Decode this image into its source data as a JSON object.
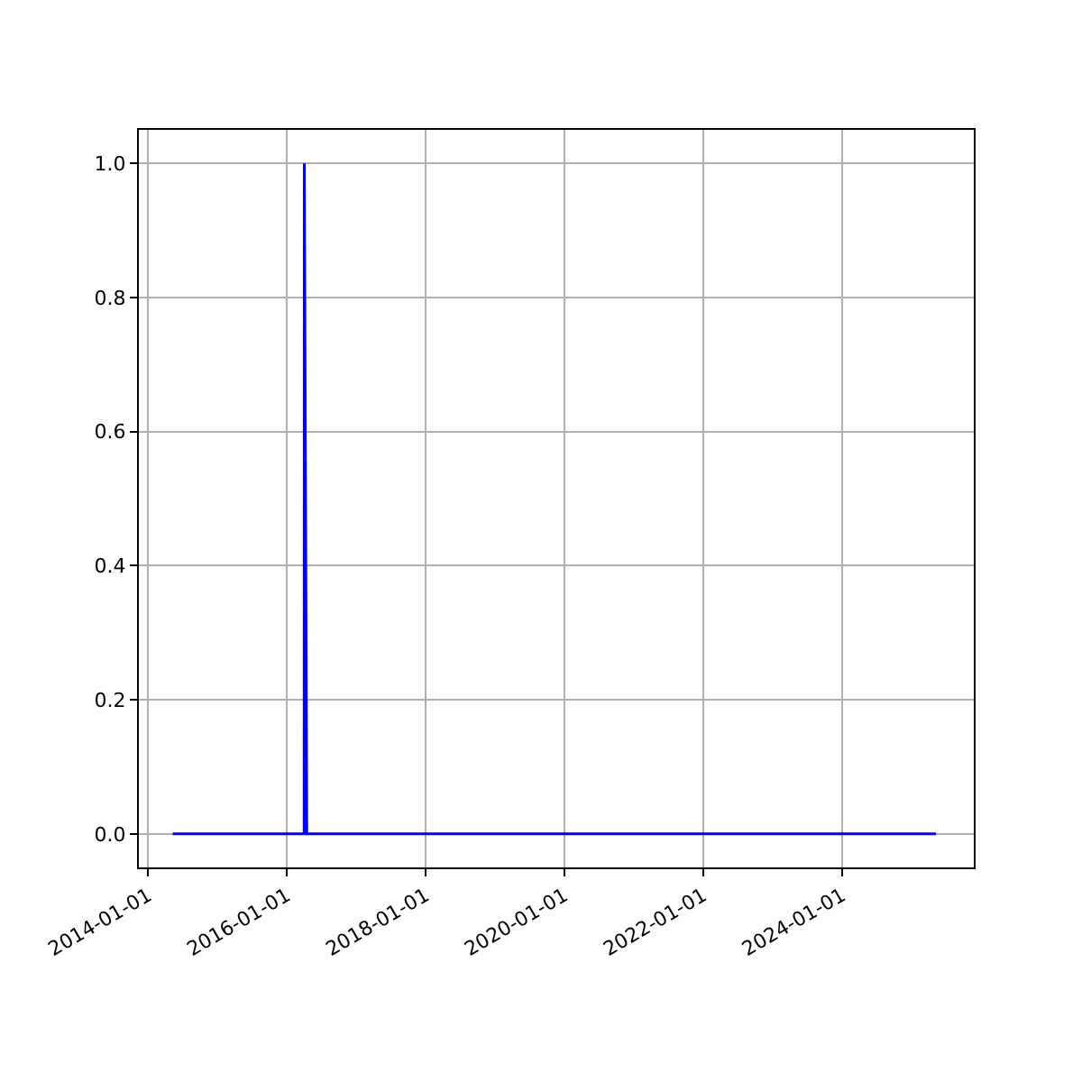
{
  "chart_data": {
    "type": "line",
    "x": [
      "2014-05-10",
      "2016-04-01",
      "2016-04-02",
      "2016-04-15",
      "2025-05-10"
    ],
    "series": [
      {
        "color": "#0000ff",
        "values": [
          0,
          0,
          1,
          0,
          0
        ]
      }
    ],
    "xlim": [
      "2013-11-13",
      "2025-11-25"
    ],
    "xticks": [
      {
        "value": "2014-01-01",
        "label": "2014-01-01"
      },
      {
        "value": "2016-01-01",
        "label": "2016-01-01"
      },
      {
        "value": "2018-01-01",
        "label": "2018-01-01"
      },
      {
        "value": "2020-01-01",
        "label": "2020-01-01"
      },
      {
        "value": "2022-01-01",
        "label": "2022-01-01"
      },
      {
        "value": "2024-01-01",
        "label": "2024-01-01"
      }
    ],
    "ylim": [
      -0.05,
      1.05
    ],
    "yticks": [
      {
        "value": 0,
        "label": "0.0"
      },
      {
        "value": 0.2,
        "label": "0.2"
      },
      {
        "value": 0.4,
        "label": "0.4"
      },
      {
        "value": 0.6,
        "label": "0.6"
      },
      {
        "value": 0.8,
        "label": "0.8"
      },
      {
        "value": 1.0,
        "label": "1.0"
      }
    ],
    "grid": true,
    "marker": "none",
    "line_style": "solid"
  }
}
